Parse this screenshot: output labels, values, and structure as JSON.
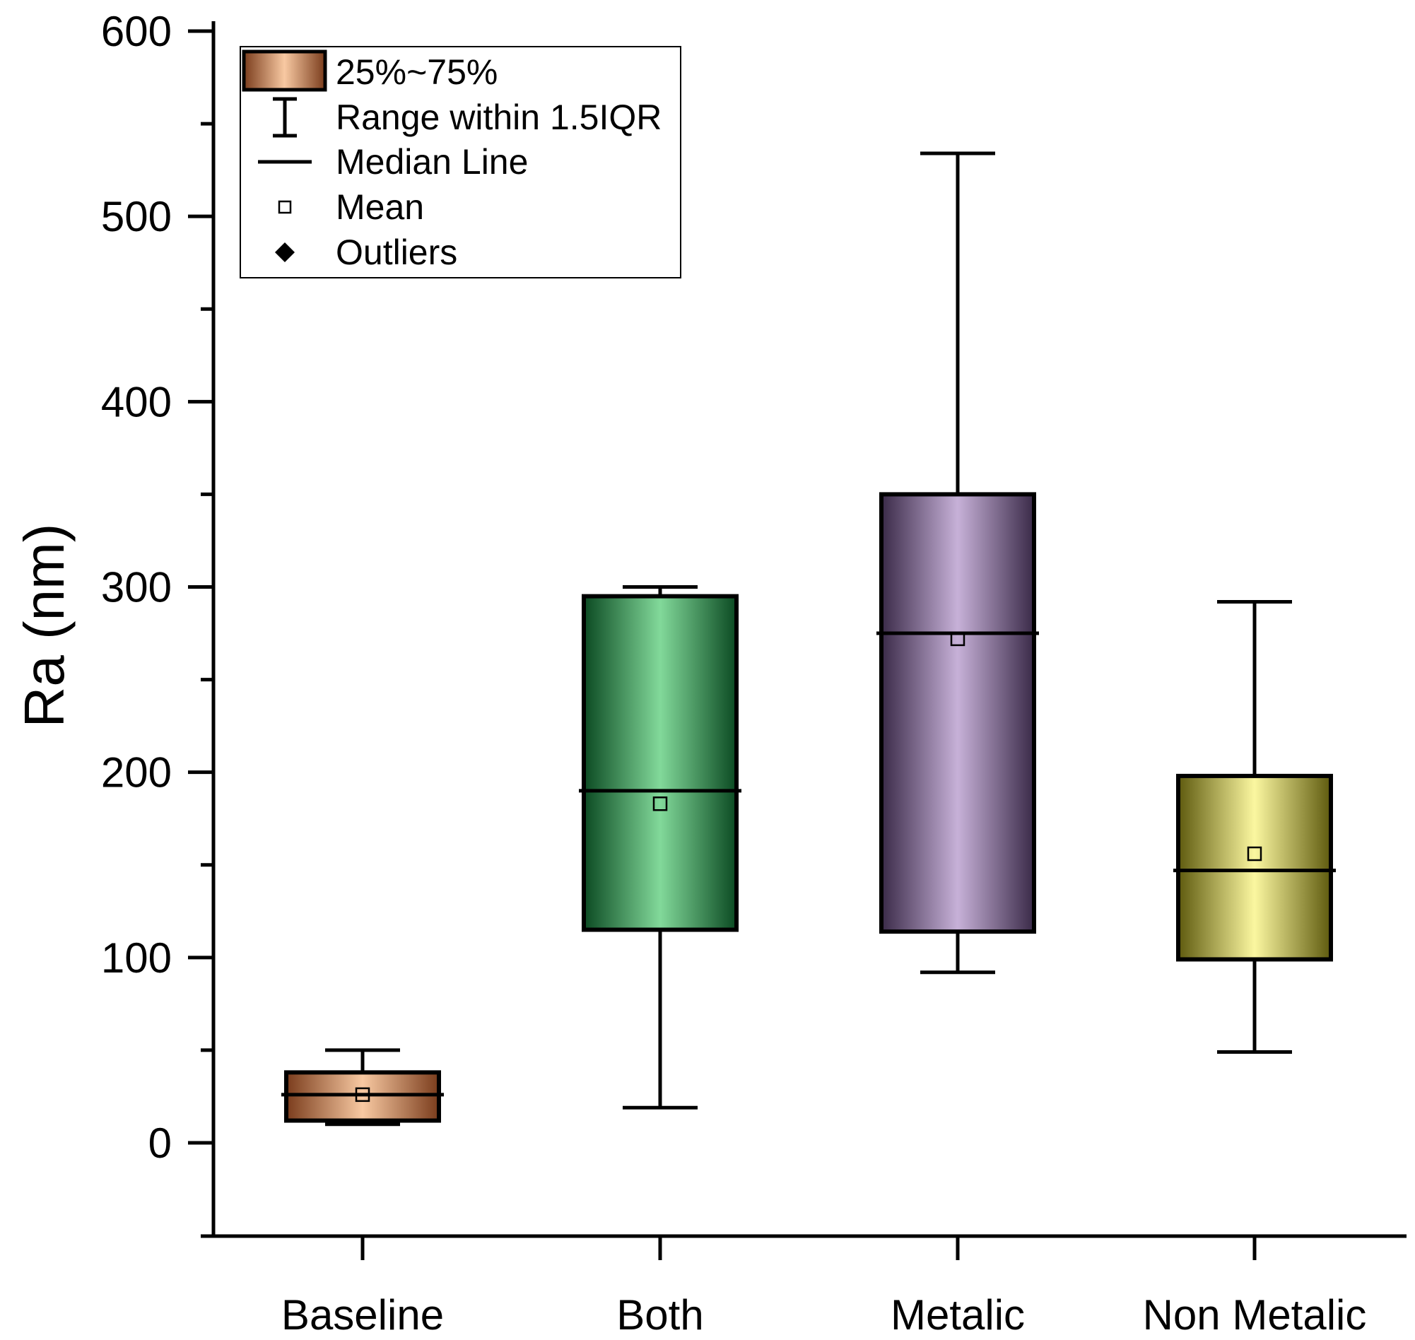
{
  "chart_data": {
    "type": "box",
    "title": "",
    "xlabel": "",
    "ylabel": "Ra (nm)",
    "ylim": [
      -50,
      600
    ],
    "yticks": [
      0,
      100,
      200,
      300,
      400,
      500,
      600
    ],
    "yticks_minor": [
      -50,
      50,
      150,
      250,
      350,
      450,
      550
    ],
    "grid": false,
    "legend_position": "top-left",
    "categories": [
      "Baseline",
      "Both",
      "Metalic",
      "Non Metalic"
    ],
    "boxes": [
      {
        "name": "Baseline",
        "whisker_low": 10,
        "q1": 12,
        "median": 26,
        "q3": 38,
        "whisker_high": 50,
        "mean": 26,
        "color_dark": "#7a3c1c",
        "color_light": "#f8c9a2"
      },
      {
        "name": "Both",
        "whisker_low": 19,
        "q1": 115,
        "median": 190,
        "q3": 295,
        "whisker_high": 300,
        "mean": 183,
        "color_dark": "#0b4a22",
        "color_light": "#82d99a"
      },
      {
        "name": "Metalic",
        "whisker_low": 92,
        "q1": 114,
        "median": 275,
        "q3": 350,
        "whisker_high": 534,
        "mean": 272,
        "color_dark": "#3a2a48",
        "color_light": "#c7b1d8"
      },
      {
        "name": "Non Metalic",
        "whisker_low": 49,
        "q1": 99,
        "median": 147,
        "q3": 198,
        "whisker_high": 292,
        "mean": 156,
        "color_dark": "#5e5a0e",
        "color_light": "#fbf7a0"
      }
    ],
    "legend": [
      {
        "key": "box",
        "label": "25%~75%"
      },
      {
        "key": "range",
        "label": "Range within 1.5IQR"
      },
      {
        "key": "median",
        "label": "Median Line"
      },
      {
        "key": "mean",
        "label": "Mean"
      },
      {
        "key": "outliers",
        "label": "Outliers"
      }
    ]
  }
}
